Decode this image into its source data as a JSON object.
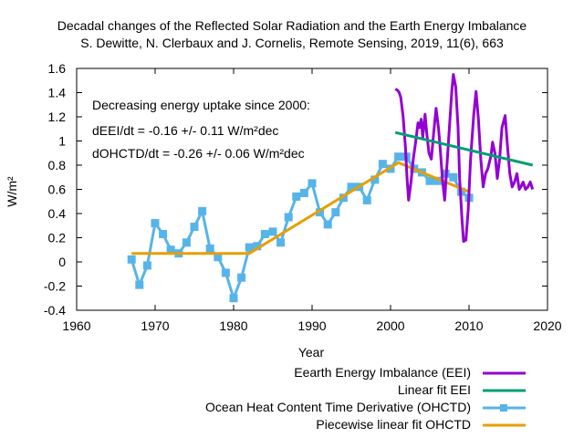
{
  "chart_data": {
    "type": "line",
    "title": "Decadal changes of the Reflected Solar Radiation and the Earth Energy Imbalance",
    "subtitle": "S. Dewitte, N. Clerbaux and J. Cornelis, Remote Sensing, 2019, 11(6), 663",
    "xlabel": "Year",
    "ylabel": "W/m²",
    "xlim": [
      1960,
      2020
    ],
    "ylim": [
      -0.4,
      1.6
    ],
    "xticks": [
      1960,
      1970,
      1980,
      1990,
      2000,
      2010,
      2020
    ],
    "yticks": [
      -0.4,
      -0.2,
      0,
      0.2,
      0.4,
      0.6,
      0.8,
      1,
      1.2,
      1.4,
      1.6
    ],
    "ytick_labels": [
      "-0.4",
      "-0.2",
      "0",
      "0.2",
      "0.4",
      "0.6",
      "0.8",
      "1",
      "1.2",
      "1.4",
      "1.6"
    ],
    "grid": false,
    "legend_position": "bottom-right-outside",
    "annotations": [
      "Decreasing energy uptake since 2000:",
      "dEEI/dt = -0.16 +/- 0.11 W/m²dec",
      "dOHCTD/dt = -0.26 +/- 0.06 W/m²dec"
    ],
    "series": [
      {
        "name": "Eearth Energy Imbalance (EEI)",
        "color": "#9400d3",
        "style": "line",
        "x": [
          2000.6,
          2000.9,
          2001.1,
          2001.3,
          2001.6,
          2001.9,
          2002.1,
          2002.3,
          2002.6,
          2002.9,
          2003.2,
          2003.5,
          2003.7,
          2003.9,
          2004.1,
          2004.4,
          2004.6,
          2004.9,
          2005.2,
          2005.5,
          2005.8,
          2006.1,
          2006.3,
          2006.6,
          2006.9,
          2007.2,
          2007.5,
          2007.8,
          2008.0,
          2008.3,
          2008.6,
          2008.8,
          2009.1,
          2009.3,
          2009.6,
          2009.9,
          2010.2,
          2010.4,
          2010.6,
          2010.9,
          2011.2,
          2011.5,
          2011.8,
          2012.1,
          2012.4,
          2012.8,
          2013.0,
          2013.3,
          2013.6,
          2013.9,
          2014.2,
          2014.6,
          2014.9,
          2015.2,
          2015.5,
          2015.8,
          2016.1,
          2016.4,
          2016.6,
          2016.9,
          2017.2,
          2017.5,
          2017.8,
          2018.1
        ],
        "values": [
          1.43,
          1.42,
          1.4,
          1.36,
          1.2,
          0.95,
          0.69,
          0.51,
          0.66,
          0.85,
          0.99,
          1.15,
          1.11,
          1.18,
          1.03,
          1.22,
          1.07,
          0.9,
          0.85,
          1.07,
          1.27,
          1.11,
          0.96,
          0.69,
          0.51,
          0.81,
          1.11,
          1.41,
          1.55,
          1.45,
          1.11,
          0.69,
          0.35,
          0.17,
          0.18,
          0.43,
          0.85,
          1.03,
          1.22,
          1.41,
          1.18,
          0.85,
          0.62,
          0.73,
          0.77,
          0.88,
          0.99,
          0.9,
          0.69,
          0.85,
          1.11,
          1.21,
          0.96,
          0.73,
          0.62,
          0.66,
          0.73,
          0.6,
          0.62,
          0.66,
          0.6,
          0.62,
          0.66,
          0.6
        ]
      },
      {
        "name": "Linear fit EEI",
        "color": "#009e73",
        "style": "line",
        "x": [
          2000.6,
          2018.1
        ],
        "values": [
          1.07,
          0.8
        ]
      },
      {
        "name": "Ocean Heat Content Time Derivative (OHCTD)",
        "color": "#56b4e9",
        "style": "linespoints",
        "x": [
          1967,
          1968,
          1969,
          1970,
          1971,
          1972,
          1973,
          1974,
          1975,
          1976,
          1977,
          1978,
          1979,
          1980,
          1981,
          1982,
          1983,
          1984,
          1985,
          1986,
          1987,
          1988,
          1989,
          1990,
          1991,
          1992,
          1993,
          1994,
          1995,
          1996,
          1997,
          1998,
          1999,
          2000,
          2001,
          2002,
          2003,
          2004,
          2005,
          2006,
          2007,
          2008,
          2009,
          2010
        ],
        "values": [
          0.02,
          -0.19,
          -0.03,
          0.32,
          0.23,
          0.1,
          0.07,
          0.16,
          0.29,
          0.42,
          0.11,
          0.04,
          -0.09,
          -0.3,
          -0.13,
          0.12,
          0.13,
          0.23,
          0.25,
          0.16,
          0.37,
          0.54,
          0.57,
          0.65,
          0.41,
          0.31,
          0.41,
          0.53,
          0.62,
          0.62,
          0.51,
          0.68,
          0.81,
          0.77,
          0.87,
          0.87,
          0.77,
          0.74,
          0.67,
          0.67,
          0.73,
          0.7,
          0.58,
          0.53
        ]
      },
      {
        "name": "Piecewise linear fit OHCTD",
        "color": "#e69f00",
        "style": "line",
        "x": [
          1967,
          1982,
          2001,
          2010
        ],
        "values": [
          0.07,
          0.07,
          0.82,
          0.58
        ]
      }
    ]
  }
}
